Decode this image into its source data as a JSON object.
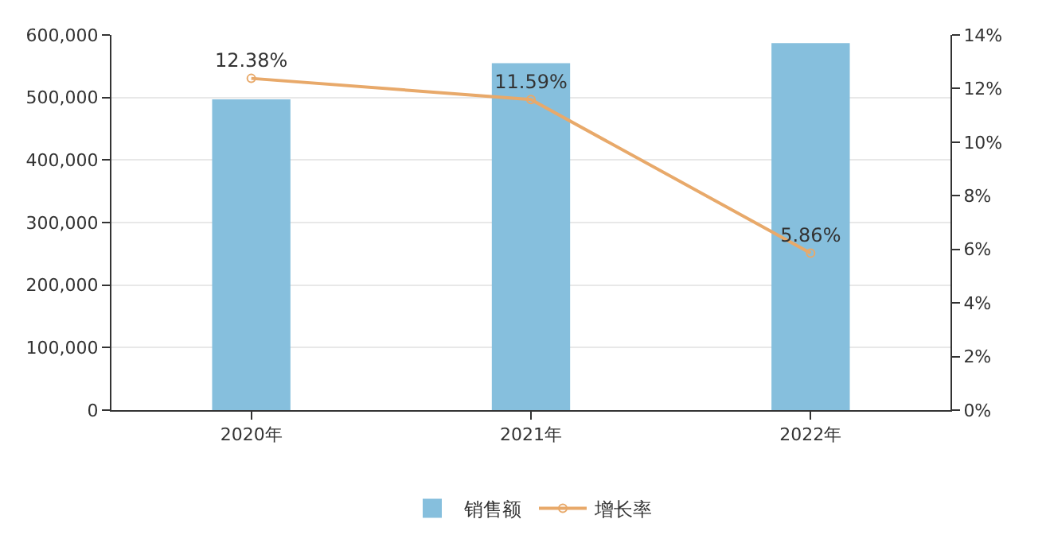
{
  "chart_data": {
    "type": "bar",
    "categories": [
      "2020年",
      "2021年",
      "2022年"
    ],
    "series": [
      {
        "name": "销售额",
        "color": "#86bfdd",
        "values": [
          497000,
          555000,
          587000
        ]
      },
      {
        "name": "增长率",
        "type": "line",
        "axis": "y2",
        "color": "#e8a96a",
        "values": [
          12.38,
          11.59,
          5.86
        ],
        "value_labels": [
          "12.38%",
          "11.59%",
          "5.86%"
        ]
      }
    ],
    "ylim": [
      0,
      600000
    ],
    "yticks": [
      0,
      {
        "value": 100000,
        "label": "100,000"
      },
      {
        "value": 200000,
        "label": "200,000"
      },
      {
        "value": 300000,
        "label": "300,000"
      },
      {
        "value": 400000,
        "label": "400,000"
      },
      {
        "value": 500000,
        "label": "500,000"
      },
      {
        "value": 600000,
        "label": "600,000"
      }
    ],
    "y2lim": [
      0,
      14
    ],
    "y2ticks": [
      {
        "value": 0,
        "label": "0%"
      },
      {
        "value": 2,
        "label": "2%"
      },
      {
        "value": 4,
        "label": "4%"
      },
      {
        "value": 6,
        "label": "6%"
      },
      {
        "value": 8,
        "label": "8%"
      },
      {
        "value": 10,
        "label": "10%"
      },
      {
        "value": 12,
        "label": "12%"
      },
      {
        "value": 14,
        "label": "14%"
      }
    ],
    "grid": "y",
    "legend": "bottom",
    "marker": "circle",
    "line_style": "solid"
  }
}
